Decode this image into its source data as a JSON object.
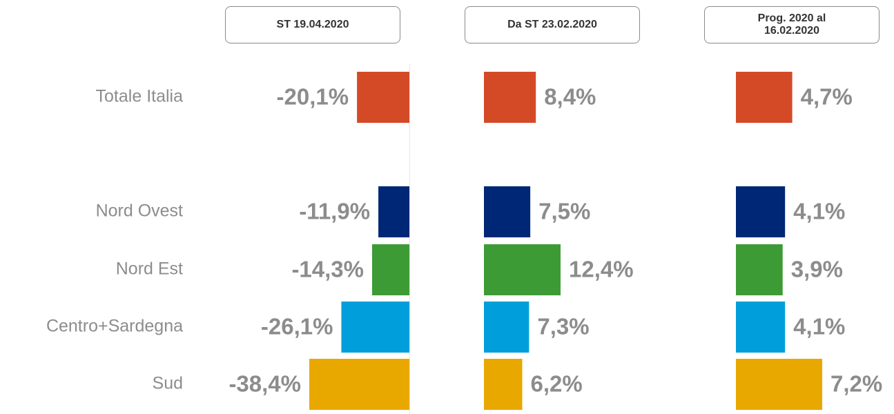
{
  "chart_data": {
    "type": "bar",
    "orientation": "horizontal",
    "categories": [
      "Totale Italia",
      "Nord Ovest",
      "Nord Est",
      "Centro+Sardegna",
      "Sud"
    ],
    "colors": [
      "#d44a27",
      "#002776",
      "#3d9b35",
      "#009fdb",
      "#e8a800"
    ],
    "series": [
      {
        "name": "ST 19.04.2020",
        "values": [
          -20.1,
          -11.9,
          -14.3,
          -26.1,
          -38.4
        ],
        "value_labels": [
          "-20,1%",
          "-11,9%",
          "-14,3%",
          "-26,1%",
          "-38,4%"
        ]
      },
      {
        "name": "Da ST 23.02.2020",
        "values": [
          8.4,
          7.5,
          12.4,
          7.3,
          6.2
        ],
        "value_labels": [
          "8,4%",
          "7,5%",
          "12,4%",
          "7,3%",
          "6,2%"
        ]
      },
      {
        "name": "Prog. 2020 al 16.02.2020",
        "values": [
          4.7,
          4.1,
          3.9,
          4.1,
          7.2
        ],
        "value_labels": [
          "4,7%",
          "4,1%",
          "3,9%",
          "4,1%",
          "7,2%"
        ]
      }
    ]
  }
}
